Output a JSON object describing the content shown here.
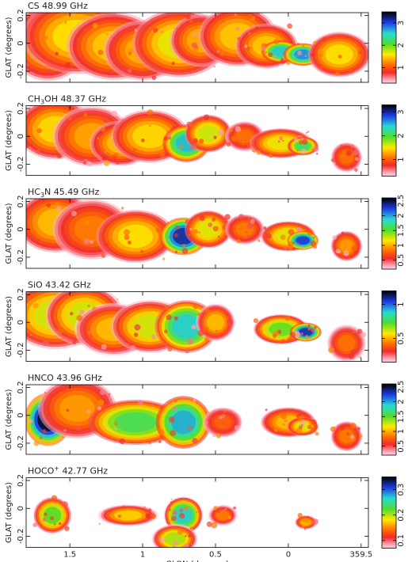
{
  "chart_data": [
    {
      "type": "heatmap",
      "title_main": "CS",
      "title_sub": "",
      "title_rest": " 48.99 GHz",
      "ylabel": "GLAT (degrees)",
      "xlim": [
        1.8,
        -0.55
      ],
      "ylim": [
        -0.28,
        0.22
      ],
      "yticks": [
        "0.2",
        "0",
        "-0.2"
      ],
      "colorbar": {
        "range": [
          0.3,
          3.5
        ],
        "ticks": [
          "1",
          "2",
          "3"
        ]
      },
      "blobs": [
        {
          "l": 1.65,
          "b": 0.0,
          "sl": 0.1,
          "sb": 0.1,
          "a": 1.4
        },
        {
          "l": 1.45,
          "b": 0.05,
          "sl": 0.14,
          "sb": 0.1,
          "a": 1.5
        },
        {
          "l": 1.2,
          "b": -0.02,
          "sl": 0.12,
          "sb": 0.09,
          "a": 1.4
        },
        {
          "l": 1.0,
          "b": -0.05,
          "sl": 0.1,
          "sb": 0.08,
          "a": 1.3
        },
        {
          "l": 0.75,
          "b": 0.0,
          "sl": 0.12,
          "sb": 0.09,
          "a": 1.6
        },
        {
          "l": 0.6,
          "b": 0.02,
          "sl": 0.08,
          "sb": 0.07,
          "a": 1.3
        },
        {
          "l": 0.35,
          "b": 0.05,
          "sl": 0.1,
          "sb": 0.08,
          "a": 1.4
        },
        {
          "l": 0.15,
          "b": -0.02,
          "sl": 0.08,
          "sb": 0.06,
          "a": 1.4
        },
        {
          "l": 0.05,
          "b": -0.06,
          "sl": 0.05,
          "sb": 0.03,
          "a": 2.6
        },
        {
          "l": -0.1,
          "b": -0.08,
          "sl": 0.05,
          "sb": 0.03,
          "a": 2.8
        },
        {
          "l": -0.35,
          "b": -0.08,
          "sl": 0.08,
          "sb": 0.06,
          "a": 1.5
        }
      ]
    },
    {
      "type": "heatmap",
      "title_main": "CH",
      "title_sub": "3",
      "title_rest": "OH 48.37 GHz",
      "ylabel": "GLAT (degrees)",
      "xlim": [
        1.8,
        -0.55
      ],
      "ylim": [
        -0.28,
        0.22
      ],
      "yticks": [
        "0.2",
        "0",
        "-0.2"
      ],
      "colorbar": {
        "range": [
          0.3,
          3.3
        ],
        "ticks": [
          "1",
          "2",
          "3"
        ]
      },
      "blobs": [
        {
          "l": 1.6,
          "b": 0.05,
          "sl": 0.1,
          "sb": 0.08,
          "a": 1.4
        },
        {
          "l": 1.35,
          "b": 0.0,
          "sl": 0.1,
          "sb": 0.08,
          "a": 1.2
        },
        {
          "l": 1.15,
          "b": -0.05,
          "sl": 0.08,
          "sb": 0.06,
          "a": 1.3
        },
        {
          "l": 0.95,
          "b": 0.0,
          "sl": 0.1,
          "sb": 0.07,
          "a": 1.4
        },
        {
          "l": 0.7,
          "b": -0.05,
          "sl": 0.06,
          "sb": 0.05,
          "a": 2.5
        },
        {
          "l": 0.55,
          "b": 0.02,
          "sl": 0.06,
          "sb": 0.05,
          "a": 1.6
        },
        {
          "l": 0.3,
          "b": 0.0,
          "sl": 0.05,
          "sb": 0.04,
          "a": 1.0
        },
        {
          "l": 0.05,
          "b": -0.05,
          "sl": 0.08,
          "sb": 0.04,
          "a": 1.5
        },
        {
          "l": -0.1,
          "b": -0.07,
          "sl": 0.04,
          "sb": 0.025,
          "a": 2.1
        },
        {
          "l": -0.4,
          "b": -0.15,
          "sl": 0.04,
          "sb": 0.04,
          "a": 1.0
        }
      ]
    },
    {
      "type": "heatmap",
      "title_main": "HC",
      "title_sub": "3",
      "title_rest": "N 45.49 GHz",
      "ylabel": "GLAT (degrees)",
      "xlim": [
        1.8,
        -0.55
      ],
      "ylim": [
        -0.28,
        0.22
      ],
      "yticks": [
        "0.2",
        "0",
        "-0.2"
      ],
      "colorbar": {
        "range": [
          0.2,
          2.6
        ],
        "ticks": [
          "0.5",
          "1",
          "1.5",
          "2",
          "2.5"
        ]
      },
      "blobs": [
        {
          "l": 1.6,
          "b": 0.05,
          "sl": 0.1,
          "sb": 0.08,
          "a": 1.0
        },
        {
          "l": 1.35,
          "b": 0.0,
          "sl": 0.1,
          "sb": 0.08,
          "a": 0.8
        },
        {
          "l": 1.05,
          "b": -0.05,
          "sl": 0.1,
          "sb": 0.07,
          "a": 1.1
        },
        {
          "l": 0.72,
          "b": -0.05,
          "sl": 0.06,
          "sb": 0.05,
          "a": 2.4
        },
        {
          "l": 0.55,
          "b": 0.0,
          "sl": 0.06,
          "sb": 0.05,
          "a": 1.2
        },
        {
          "l": 0.3,
          "b": 0.0,
          "sl": 0.05,
          "sb": 0.04,
          "a": 0.8
        },
        {
          "l": 0.0,
          "b": -0.05,
          "sl": 0.07,
          "sb": 0.04,
          "a": 1.2
        },
        {
          "l": -0.1,
          "b": -0.08,
          "sl": 0.04,
          "sb": 0.025,
          "a": 2.3
        },
        {
          "l": -0.4,
          "b": -0.12,
          "sl": 0.04,
          "sb": 0.04,
          "a": 0.9
        }
      ]
    },
    {
      "type": "heatmap",
      "title_main": "SiO",
      "title_sub": "",
      "title_rest": " 43.42 GHz",
      "ylabel": "GLAT (degrees)",
      "xlim": [
        1.8,
        -0.55
      ],
      "ylim": [
        -0.28,
        0.22
      ],
      "yticks": [
        "0.2",
        "0",
        "-0.2"
      ],
      "colorbar": {
        "range": [
          0.15,
          1.2
        ],
        "ticks": [
          "0.5",
          "1"
        ]
      },
      "blobs": [
        {
          "l": 1.6,
          "b": 0.05,
          "sl": 0.12,
          "sb": 0.09,
          "a": 0.6
        },
        {
          "l": 1.4,
          "b": 0.05,
          "sl": 0.1,
          "sb": 0.08,
          "a": 0.6
        },
        {
          "l": 1.2,
          "b": -0.05,
          "sl": 0.1,
          "sb": 0.07,
          "a": 0.5
        },
        {
          "l": 0.95,
          "b": -0.03,
          "sl": 0.1,
          "sb": 0.07,
          "a": 0.6
        },
        {
          "l": 0.7,
          "b": -0.03,
          "sl": 0.08,
          "sb": 0.07,
          "a": 0.9
        },
        {
          "l": 0.5,
          "b": 0.0,
          "sl": 0.05,
          "sb": 0.05,
          "a": 0.5
        },
        {
          "l": 0.05,
          "b": -0.05,
          "sl": 0.07,
          "sb": 0.04,
          "a": 0.7
        },
        {
          "l": -0.12,
          "b": -0.07,
          "sl": 0.04,
          "sb": 0.025,
          "a": 1.1
        },
        {
          "l": -0.4,
          "b": -0.15,
          "sl": 0.05,
          "sb": 0.05,
          "a": 0.4
        }
      ]
    },
    {
      "type": "heatmap",
      "title_main": "HNCO",
      "title_sub": "",
      "title_rest": " 43.96 GHz",
      "ylabel": "GLAT (degrees)",
      "xlim": [
        1.8,
        -0.55
      ],
      "ylim": [
        -0.28,
        0.22
      ],
      "yticks": [
        "0.2",
        "0",
        "-0.2"
      ],
      "colorbar": {
        "range": [
          0.2,
          2.6
        ],
        "ticks": [
          "0.5",
          "1",
          "1.5",
          "2",
          "2.5"
        ]
      },
      "blobs": [
        {
          "l": 1.65,
          "b": -0.03,
          "sl": 0.06,
          "sb": 0.07,
          "a": 2.6
        },
        {
          "l": 1.45,
          "b": 0.05,
          "sl": 0.1,
          "sb": 0.08,
          "a": 0.9
        },
        {
          "l": 1.05,
          "b": -0.05,
          "sl": 0.12,
          "sb": 0.06,
          "a": 1.6
        },
        {
          "l": 0.72,
          "b": -0.05,
          "sl": 0.07,
          "sb": 0.07,
          "a": 2.0
        },
        {
          "l": 0.45,
          "b": -0.05,
          "sl": 0.05,
          "sb": 0.04,
          "a": 0.7
        },
        {
          "l": 0.0,
          "b": -0.05,
          "sl": 0.07,
          "sb": 0.04,
          "a": 1.0
        },
        {
          "l": -0.1,
          "b": -0.08,
          "sl": 0.04,
          "sb": 0.025,
          "a": 1.2
        },
        {
          "l": -0.4,
          "b": -0.15,
          "sl": 0.04,
          "sb": 0.04,
          "a": 0.8
        }
      ]
    },
    {
      "type": "heatmap",
      "title_main": "HOCO",
      "title_sup": "+",
      "title_sub": "",
      "title_rest": " 42.77 GHz",
      "ylabel": "GLAT (degrees)",
      "xlabel": "GLON (degrees)",
      "xticks": [
        "1.5",
        "1",
        "0.5",
        "0",
        "359.5"
      ],
      "xlim": [
        1.8,
        -0.55
      ],
      "ylim": [
        -0.28,
        0.22
      ],
      "yticks": [
        "0.2",
        "0",
        "-0.2"
      ],
      "colorbar": {
        "range": [
          0.07,
          0.35
        ],
        "ticks": [
          "0.1",
          "0.2",
          "0.3"
        ]
      },
      "blobs": [
        {
          "l": 1.62,
          "b": -0.05,
          "sl": 0.05,
          "sb": 0.05,
          "a": 0.22
        },
        {
          "l": 1.1,
          "b": -0.05,
          "sl": 0.08,
          "sb": 0.03,
          "a": 0.17
        },
        {
          "l": 0.72,
          "b": -0.05,
          "sl": 0.05,
          "sb": 0.05,
          "a": 0.27
        },
        {
          "l": 0.78,
          "b": -0.22,
          "sl": 0.06,
          "sb": 0.04,
          "a": 0.2
        },
        {
          "l": 0.45,
          "b": -0.05,
          "sl": 0.04,
          "sb": 0.03,
          "a": 0.14
        },
        {
          "l": -0.12,
          "b": -0.1,
          "sl": 0.03,
          "sb": 0.02,
          "a": 0.16
        }
      ]
    }
  ]
}
